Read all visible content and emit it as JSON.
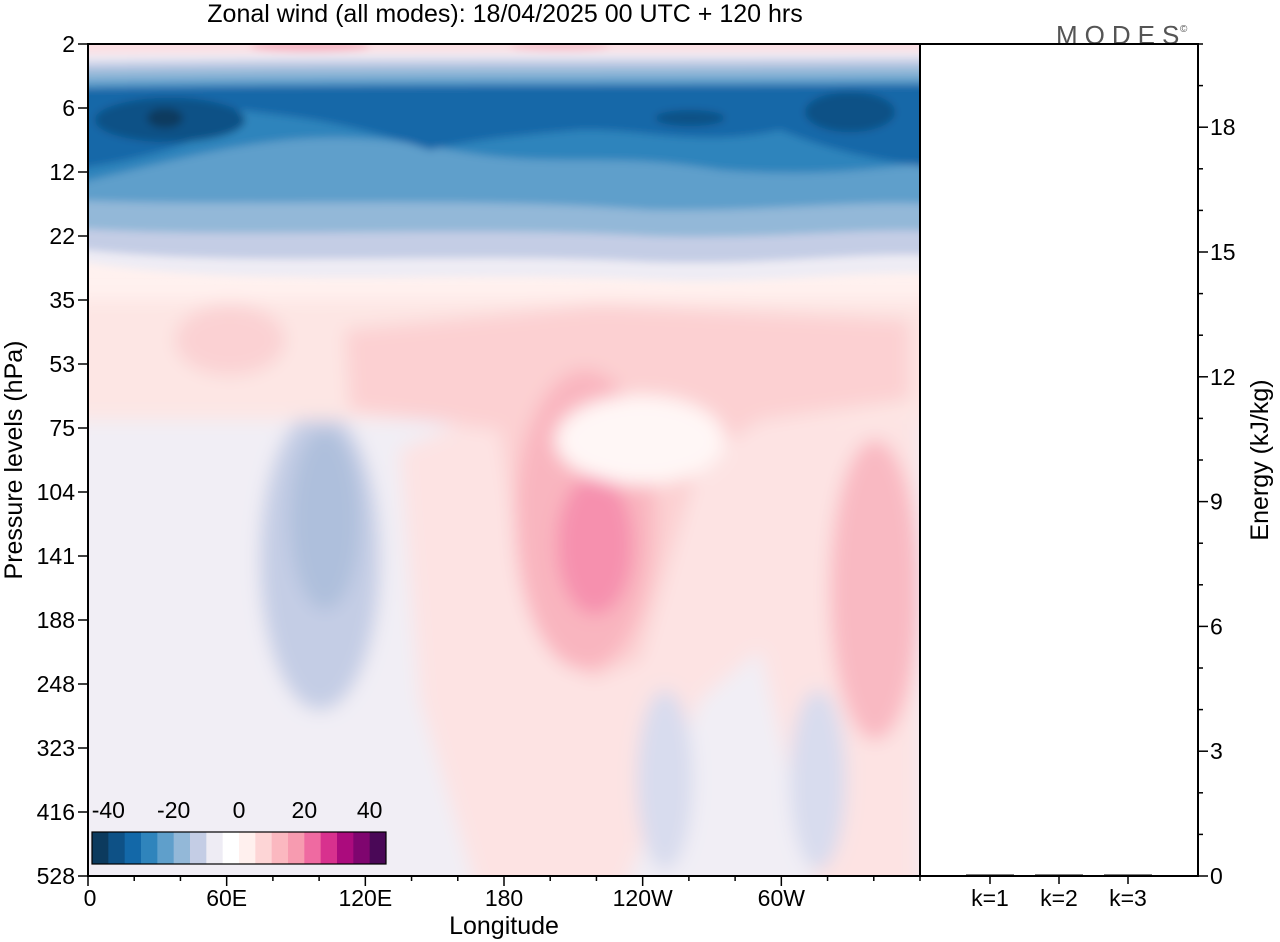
{
  "logo": {
    "text": "MODES",
    "mark": "©"
  },
  "chart_data": [
    {
      "type": "heatmap",
      "title": "Zonal wind (all modes):  18/04/2025  00 UTC  + 120 hrs",
      "xlabel": "Longitude",
      "ylabel": "Pressure levels (hPa)",
      "x_ticks": [
        "0",
        "60E",
        "120E",
        "180",
        "120W",
        "60W"
      ],
      "x_tick_degrees": [
        0,
        60,
        120,
        180,
        240,
        300
      ],
      "x_range_degrees": [
        0,
        360
      ],
      "y_ticks": [
        "2",
        "6",
        "12",
        "22",
        "35",
        "53",
        "75",
        "104",
        "141",
        "188",
        "248",
        "323",
        "416",
        "528"
      ],
      "colorbar": {
        "labels": [
          "-40",
          "-20",
          "0",
          "20",
          "40"
        ],
        "label_values": [
          -40,
          -20,
          0,
          20,
          40
        ],
        "range": [
          -45,
          45
        ],
        "colors": [
          "#0c3a5e",
          "#0e5186",
          "#1368a8",
          "#2f84bc",
          "#5f9fcb",
          "#93b8d8",
          "#c4cde5",
          "#eeecf4",
          "#ffffff",
          "#fff0ee",
          "#fdd5d6",
          "#fbb8c0",
          "#f79bb0",
          "#ef6aa1",
          "#d8318e",
          "#ab0b7d",
          "#7f056f",
          "#4a0857"
        ]
      },
      "field_summary": [
        {
          "levels": "2",
          "wind": "weak easterly to slight westerly"
        },
        {
          "levels": "6-12",
          "wind": "strong easterly, about -30 to -40"
        },
        {
          "levels": "22",
          "wind": "weak easterly, about -5 to -15"
        },
        {
          "levels": "35-75",
          "wind": "weak westerly, about 5 to 15"
        },
        {
          "levels": "104-248",
          "wind": "westerly maximum about 20 near 155W; weak easterly near 90E"
        },
        {
          "levels": "323-528",
          "wind": "mostly weak, within about -5 to 5"
        }
      ],
      "grid": false
    },
    {
      "type": "bar",
      "categories": [
        "k=1",
        "k=2",
        "k=3"
      ],
      "values": [
        0.02,
        0.01,
        0.01
      ],
      "ylabel": "Energy (kJ/kg)",
      "ylim": [
        0,
        20
      ],
      "y_ticks": [
        "0",
        "3",
        "6",
        "9",
        "12",
        "15",
        "18"
      ],
      "y_tick_values": [
        0,
        3,
        6,
        9,
        12,
        15,
        18
      ],
      "y_minor_step": 1,
      "axis_side": "right",
      "bar_color": "#000000"
    }
  ]
}
